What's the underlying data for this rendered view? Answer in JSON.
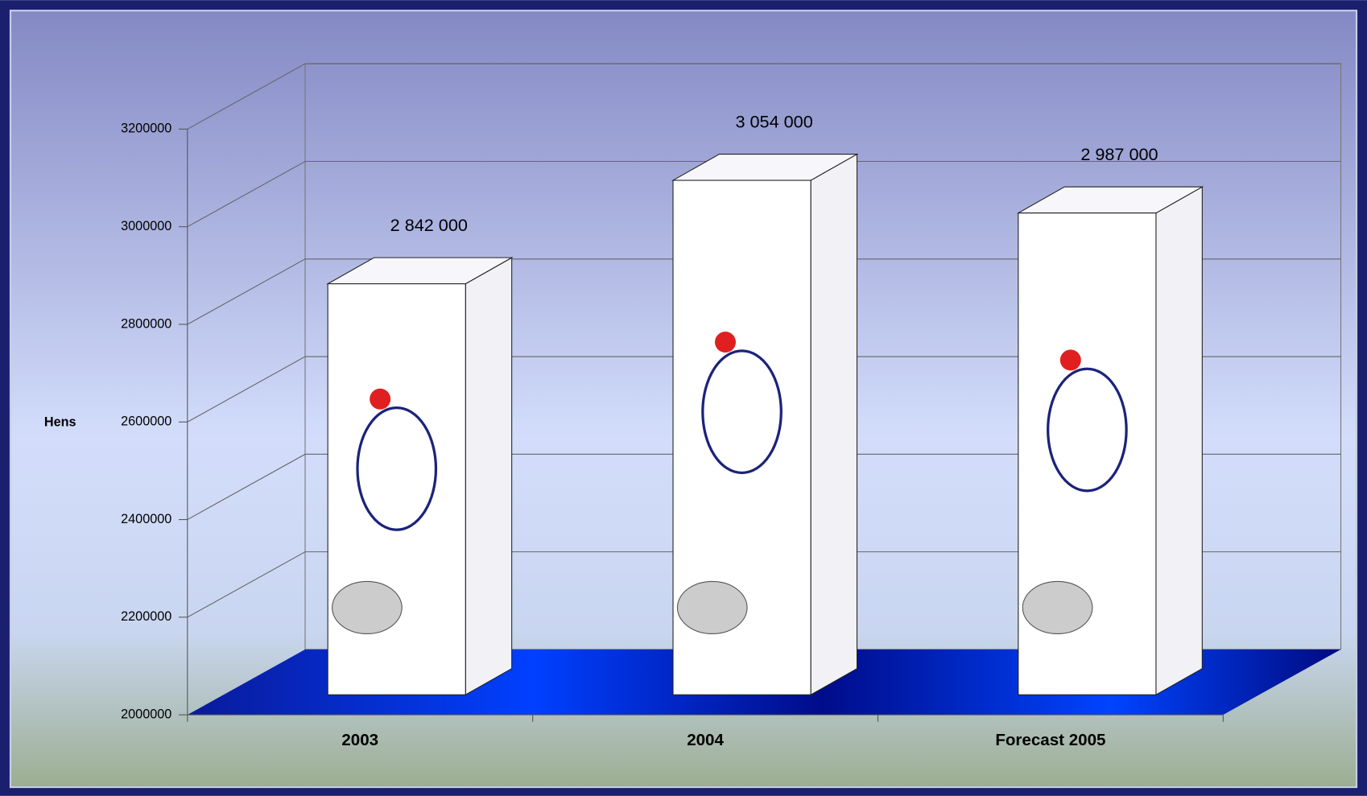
{
  "chart_data": {
    "type": "bar3d",
    "y_label": "Hens",
    "categories": [
      "2003",
      "2004",
      "Forecast 2005"
    ],
    "values": [
      2842000,
      3054000,
      2987000
    ],
    "value_labels": [
      "2 842 000",
      "3 054 000",
      "2 987 000"
    ],
    "color": "#ffffff",
    "ylim": [
      2000000,
      3200000
    ],
    "yticks": [
      2000000,
      2200000,
      2400000,
      2600000,
      2800000,
      3000000,
      3200000
    ],
    "grid": true
  }
}
